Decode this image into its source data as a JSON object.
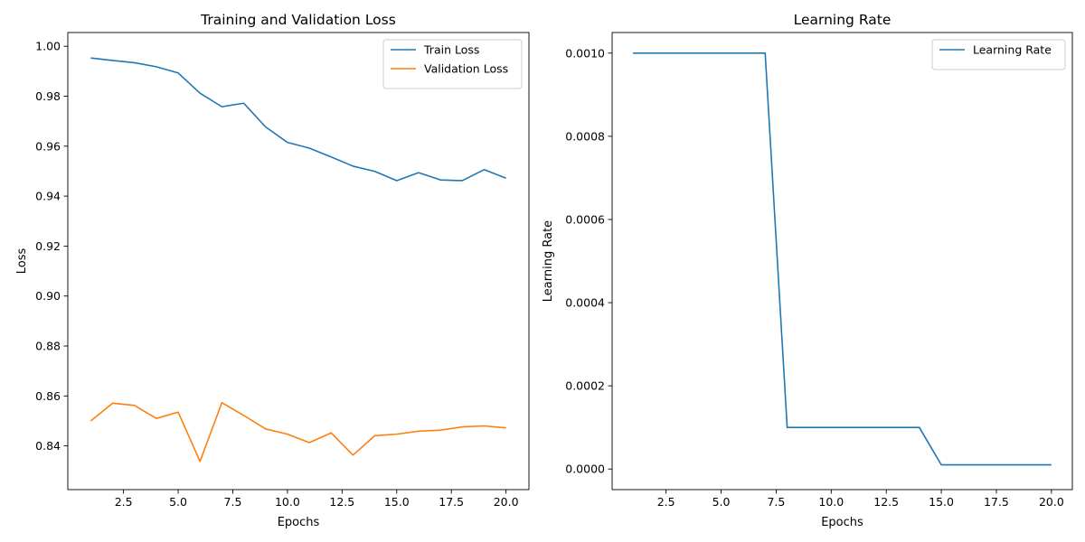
{
  "chart_data": [
    {
      "type": "line",
      "title": "Training and Validation Loss",
      "xlabel": "Epochs",
      "ylabel": "Loss",
      "x": [
        1,
        2,
        3,
        4,
        5,
        6,
        7,
        8,
        9,
        10,
        11,
        12,
        13,
        14,
        15,
        16,
        17,
        18,
        19,
        20
      ],
      "xlim": [
        -0.05,
        21.05
      ],
      "ylim": [
        0.8225,
        1.0055
      ],
      "xticks": [
        2.5,
        5.0,
        7.5,
        10.0,
        12.5,
        15.0,
        17.5,
        20.0
      ],
      "xtick_labels": [
        "2.5",
        "5.0",
        "7.5",
        "10.0",
        "12.5",
        "15.0",
        "17.5",
        "20.0"
      ],
      "yticks": [
        0.84,
        0.86,
        0.88,
        0.9,
        0.92,
        0.94,
        0.96,
        0.98,
        1.0
      ],
      "ytick_labels": [
        "0.84",
        "0.86",
        "0.88",
        "0.90",
        "0.92",
        "0.94",
        "0.96",
        "0.98",
        "1.00"
      ],
      "grid": false,
      "legend_position": "top-right",
      "series": [
        {
          "name": "Train Loss",
          "color": "#1f77b4",
          "values": [
            0.9953,
            0.9943,
            0.9934,
            0.9918,
            0.9893,
            0.9812,
            0.9758,
            0.9772,
            0.9677,
            0.9615,
            0.9592,
            0.9557,
            0.952,
            0.9499,
            0.9462,
            0.9494,
            0.9465,
            0.9462,
            0.9506,
            0.9472
          ]
        },
        {
          "name": "Validation Loss",
          "color": "#ff7f0e",
          "values": [
            0.85,
            0.8571,
            0.8562,
            0.851,
            0.8535,
            0.8338,
            0.8573,
            0.8522,
            0.8468,
            0.8447,
            0.8413,
            0.8452,
            0.8363,
            0.8441,
            0.8447,
            0.8459,
            0.8463,
            0.8476,
            0.848,
            0.8472
          ]
        }
      ]
    },
    {
      "type": "line",
      "title": "Learning Rate",
      "xlabel": "Epochs",
      "ylabel": "Learning Rate",
      "x": [
        1,
        2,
        3,
        4,
        5,
        6,
        7,
        8,
        9,
        10,
        11,
        12,
        13,
        14,
        15,
        16,
        17,
        18,
        19,
        20
      ],
      "xlim": [
        0.05,
        20.95
      ],
      "ylim": [
        -4.95e-05,
        0.0010495
      ],
      "xticks": [
        2.5,
        5.0,
        7.5,
        10.0,
        12.5,
        15.0,
        17.5,
        20.0
      ],
      "xtick_labels": [
        "2.5",
        "5.0",
        "7.5",
        "10.0",
        "12.5",
        "15.0",
        "17.5",
        "20.0"
      ],
      "yticks": [
        0.0,
        0.0002,
        0.0004,
        0.0006,
        0.0008,
        0.001
      ],
      "ytick_labels": [
        "0.0000",
        "0.0002",
        "0.0004",
        "0.0006",
        "0.0008",
        "0.0010"
      ],
      "grid": false,
      "legend_position": "top-right",
      "series": [
        {
          "name": "Learning Rate",
          "color": "#1f77b4",
          "values": [
            0.001,
            0.001,
            0.001,
            0.001,
            0.001,
            0.001,
            0.001,
            0.0001,
            0.0001,
            0.0001,
            0.0001,
            0.0001,
            0.0001,
            0.0001,
            1e-05,
            1e-05,
            1e-05,
            1e-05,
            1e-05,
            1e-05
          ]
        }
      ]
    }
  ]
}
